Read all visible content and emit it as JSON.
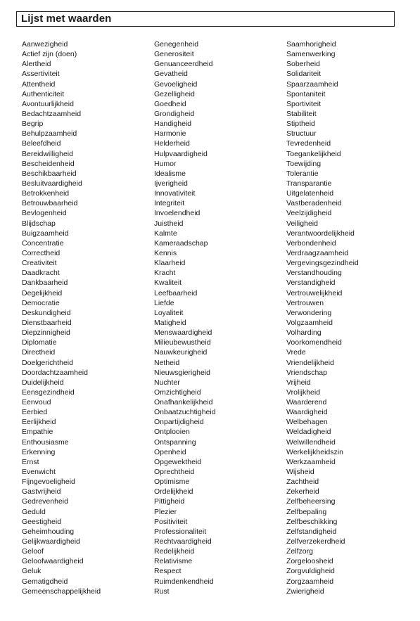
{
  "title": "Lijst met waarden",
  "columns": [
    [
      "Aanwezigheid",
      "Actief zijn (doen)",
      "Alertheid",
      "Assertiviteit",
      "Attentheid",
      "Authenticiteit",
      "Avontuurlijkheid",
      "Bedachtzaamheid",
      "Begrip",
      "Behulpzaamheid",
      "Beleefdheid",
      "Bereidwilligheid",
      "Bescheidenheid",
      "Beschikbaarheid",
      "Besluitvaardigheid",
      "Betrokkenheid",
      "Betrouwbaarheid",
      "Bevlogenheid",
      "Blijdschap",
      "Buigzaamheid",
      "Concentratie",
      "Correctheid",
      "Creativiteit",
      "Daadkracht",
      "Dankbaarheid",
      "Degelijkheid",
      "Democratie",
      "Deskundigheid",
      "Dienstbaarheid",
      "Diepzinnigheid",
      "Diplomatie",
      "Directheid",
      "Doelgerichtheid",
      "Doordachtzaamheid",
      "Duidelijkheid",
      "Eensgezindheid",
      "Eenvoud",
      "Eerbied",
      "Eerlijkheid",
      "Empathie",
      "Enthousiasme",
      "Erkenning",
      "Ernst",
      "Evenwicht",
      "Fijngevoeligheid",
      "Gastvrijheid",
      "Gedrevenheid",
      "Geduld",
      "Geestigheid",
      "Geheimhouding",
      "Gelijkwaardigheid",
      "Geloof",
      "Geloofwaardigheid",
      "Geluk",
      "Gematigdheid",
      "Gemeenschappelijkheid"
    ],
    [
      "Genegenheid",
      "Generositeit",
      "Genuanceerdheid",
      "Gevatheid",
      "Gevoeligheid",
      "Gezelligheid",
      "Goedheid",
      "Grondigheid",
      "Handigheid",
      "Harmonie",
      "Helderheid",
      "Hulpvaardigheid",
      "Humor",
      "Idealisme",
      "Ijverigheid",
      "Innovativiteit",
      "Integriteit",
      "Invoelendheid",
      "Juistheid",
      "Kalmte",
      "Kameraadschap",
      "Kennis",
      "Klaarheid",
      "Kracht",
      "Kwaliteit",
      "Leefbaarheid",
      "Liefde",
      "Loyaliteit",
      "Matigheid",
      "Menswaardigheid",
      "Milieubewustheid",
      "Nauwkeurigheid",
      "Netheid",
      "Nieuwsgierigheid",
      "Nuchter",
      "Omzichtigheid",
      "Onafhankelijkheid",
      "Onbaatzuchtigheid",
      "Onpartijdigheid",
      "Ontplooien",
      "Ontspanning",
      "Openheid",
      "Opgewektheid",
      "Oprechtheid",
      "Optimisme",
      "Ordelijkheid",
      "Pittigheid",
      "Plezier",
      "Positiviteit",
      "Professionaliteit",
      "Rechtvaardigheid",
      "Redelijkheid",
      "Relativisme",
      "Respect",
      "Ruimdenkendheid",
      "Rust"
    ],
    [
      "Saamhorigheid",
      "Samenwerking",
      "Soberheid",
      "Solidariteit",
      "Spaarzaamheid",
      "Spontaniteit",
      "Sportiviteit",
      "Stabiliteit",
      "Stiptheid",
      "Structuur",
      "Tevredenheid",
      "Toegankelijkheid",
      "Toewijding",
      "Tolerantie",
      "Transparantie",
      "Uitgelatenheid",
      "Vastberadenheid",
      "Veelzijdigheid",
      "Veiligheid",
      "Verantwoordelijkheid",
      "Verbondenheid",
      "Verdraagzaamheid",
      "Vergevingsgezindheid",
      "Verstandhouding",
      "Verstandigheid",
      "Vertrouwelijkheid",
      "Vertrouwen",
      "Verwondering",
      "Volgzaamheid",
      "Volharding",
      "Voorkomendheid",
      "Vrede",
      "Vriendelijkheid",
      "Vriendschap",
      "Vrijheid",
      "Vrolijkheid",
      "Waarderend",
      "Waardigheid",
      "Welbehagen",
      "Weldadigheid",
      "Welwillendheid",
      "Werkelijkheidszin",
      "Werkzaamheid",
      "Wijsheid",
      "Zachtheid",
      "Zekerheid",
      "Zelfbeheersing",
      "Zelfbepaling",
      "Zelfbeschikking",
      "Zelfstandigheid",
      "Zelfverzekerdheid",
      "Zelfzorg",
      "Zorgeloosheid",
      "Zorgvuldigheid",
      "Zorgzaamheid",
      "Zwierigheid"
    ]
  ]
}
